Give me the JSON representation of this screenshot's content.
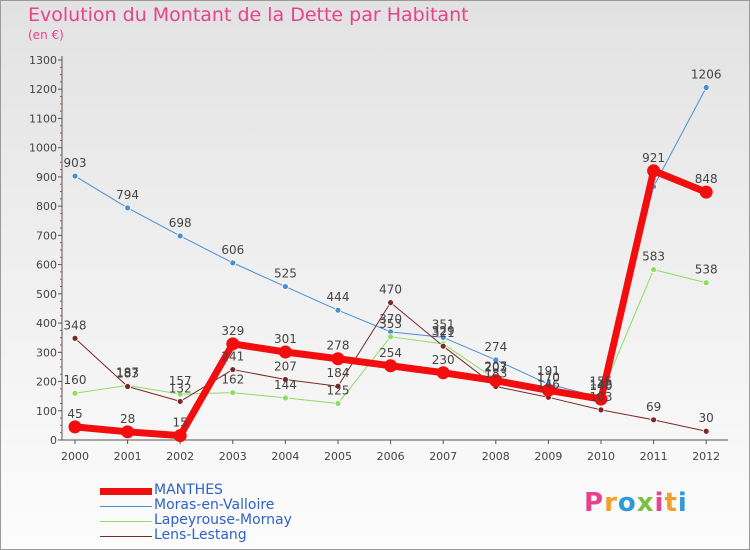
{
  "title": "Evolution du Montant de la Dette par Habitant",
  "subtitle": "(en €)",
  "logo": {
    "text": "Proxiti",
    "colors": [
      "#e8428c",
      "#f2a02a",
      "#2f9ad8",
      "#7bc142",
      "#e8428c",
      "#f2a02a",
      "#2f9ad8"
    ]
  },
  "chart_data": {
    "type": "line",
    "x": [
      "2000",
      "2001",
      "2002",
      "2003",
      "2004",
      "2005",
      "2006",
      "2007",
      "2008",
      "2009",
      "2010",
      "2011",
      "2012"
    ],
    "ylim": [
      0,
      1300
    ],
    "yticks": [
      0,
      100,
      200,
      300,
      400,
      500,
      600,
      700,
      800,
      900,
      1000,
      1100,
      1200,
      1300
    ],
    "grid": false,
    "legend_position": "bottom-left",
    "series": [
      {
        "name": "Moras-en-Valloire",
        "color": "#4a8fd4",
        "width": 1,
        "values": [
          903,
          794,
          698,
          606,
          525,
          444,
          370,
          351,
          274,
          191,
          146,
          867,
          1206
        ],
        "labels": [
          "903",
          "794",
          "698",
          "606",
          "525",
          "444",
          "370",
          "351",
          "274",
          "191",
          "146",
          "",
          "1206"
        ]
      },
      {
        "name": "Lapeyrouse-Mornay",
        "color": "#8edc62",
        "width": 1,
        "values": [
          160,
          187,
          157,
          162,
          144,
          125,
          353,
          329,
          207,
          170,
          155,
          583,
          538
        ],
        "labels": [
          "160",
          "187",
          "157",
          "162",
          "144",
          "125",
          "353",
          "329",
          "207",
          "170",
          "155",
          "583",
          "538"
        ]
      },
      {
        "name": "Lens-Lestang",
        "color": "#7a2828",
        "width": 1,
        "values": [
          348,
          183,
          132,
          241,
          207,
          184,
          470,
          321,
          183,
          146,
          103,
          69,
          30
        ],
        "labels": [
          "348",
          "183",
          "132",
          "241",
          "207",
          "184",
          "470",
          "321",
          "183",
          "146",
          "103",
          "69",
          "30"
        ]
      },
      {
        "name": "MANTHES",
        "color": "#f20e0e",
        "width": 7,
        "values": [
          45,
          28,
          15,
          329,
          301,
          278,
          254,
          230,
          203,
          170,
          140,
          921,
          848
        ],
        "labels": [
          "45",
          "28",
          "15",
          "329",
          "301",
          "278",
          "254",
          "230",
          "203",
          "170",
          "140",
          "921",
          "848"
        ]
      }
    ],
    "legend": [
      {
        "name": "MANTHES",
        "color": "#f20e0e",
        "width": 7
      },
      {
        "name": "Moras-en-Valloire",
        "color": "#4a8fd4",
        "width": 1
      },
      {
        "name": "Lapeyrouse-Mornay",
        "color": "#8edc62",
        "width": 1
      },
      {
        "name": "Lens-Lestang",
        "color": "#7a2828",
        "width": 1
      }
    ]
  }
}
